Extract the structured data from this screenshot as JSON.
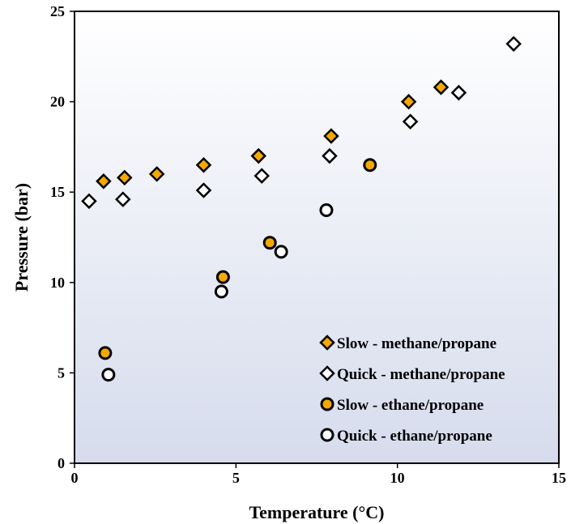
{
  "chart_data": {
    "type": "scatter",
    "title": "",
    "xlabel": "Temperature (°C)",
    "ylabel": "Pressure (bar)",
    "xlim": [
      0,
      15
    ],
    "ylim": [
      0,
      25
    ],
    "xticks": [
      0,
      5,
      10,
      15
    ],
    "yticks": [
      0,
      5,
      10,
      15,
      20,
      25
    ],
    "grid": false,
    "legend_position": "bottom-right",
    "background_gradient": [
      "#ffffff",
      "#d6dced"
    ],
    "series": [
      {
        "name": "Slow - methane/propane",
        "marker": "diamond",
        "fill": "#f5a800",
        "points": [
          [
            0.9,
            15.6
          ],
          [
            1.55,
            15.8
          ],
          [
            2.55,
            16.0
          ],
          [
            4.0,
            16.5
          ],
          [
            5.7,
            17.0
          ],
          [
            7.95,
            18.1
          ],
          [
            10.35,
            20.0
          ],
          [
            11.35,
            20.8
          ]
        ]
      },
      {
        "name": "Quick - methane/propane",
        "marker": "diamond",
        "fill": "#ffffff",
        "points": [
          [
            0.45,
            14.5
          ],
          [
            1.5,
            14.6
          ],
          [
            4.0,
            15.1
          ],
          [
            5.8,
            15.9
          ],
          [
            7.9,
            17.0
          ],
          [
            10.4,
            18.9
          ],
          [
            11.9,
            20.5
          ],
          [
            13.6,
            23.2
          ]
        ]
      },
      {
        "name": "Slow - ethane/propane",
        "marker": "circle",
        "fill": "#f5a800",
        "points": [
          [
            0.95,
            6.1
          ],
          [
            4.6,
            10.3
          ],
          [
            6.05,
            12.2
          ],
          [
            9.15,
            16.5
          ]
        ]
      },
      {
        "name": "Quick - ethane/propane",
        "marker": "circle",
        "fill": "#ffffff",
        "points": [
          [
            1.05,
            4.9
          ],
          [
            4.55,
            9.5
          ],
          [
            6.4,
            11.7
          ],
          [
            7.8,
            14.0
          ]
        ]
      }
    ]
  }
}
